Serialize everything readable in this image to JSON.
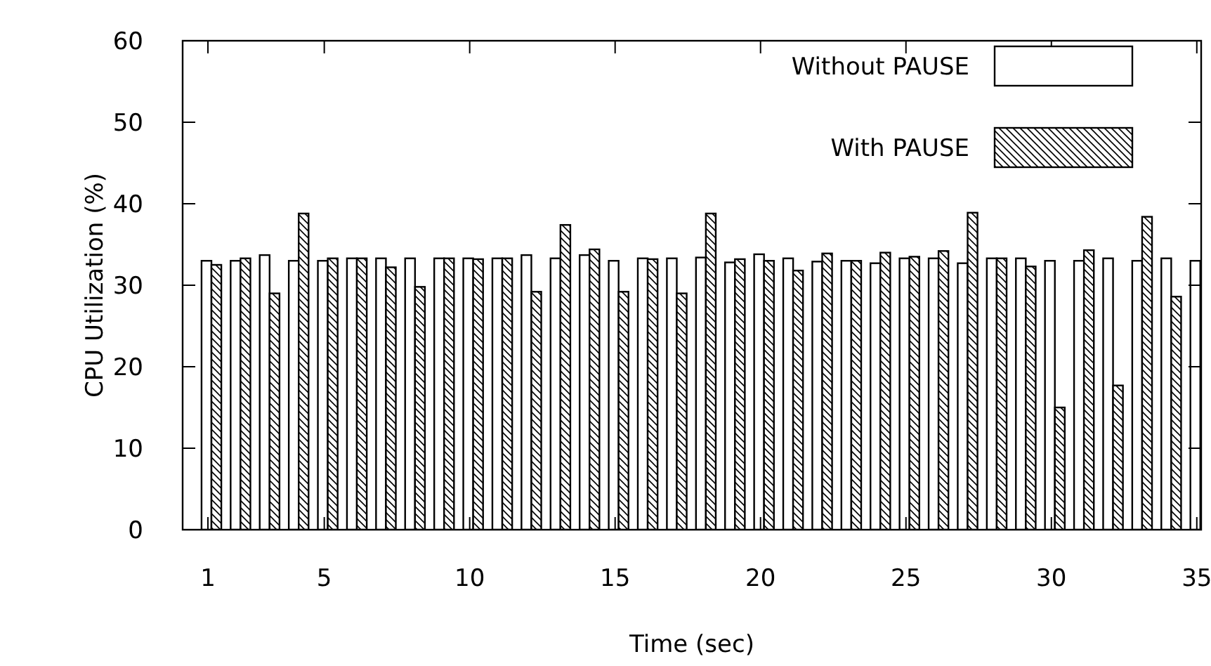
{
  "chart_data": {
    "type": "bar",
    "xlabel": "Time (sec)",
    "ylabel": "CPU Utilization (%)",
    "x": [
      1,
      2,
      3,
      4,
      5,
      6,
      7,
      8,
      9,
      10,
      11,
      12,
      13,
      14,
      15,
      16,
      17,
      18,
      19,
      20,
      21,
      22,
      23,
      24,
      25,
      26,
      27,
      28,
      29,
      30,
      31,
      32,
      33,
      34,
      35
    ],
    "xlim": [
      0.13,
      35.15
    ],
    "xticks": [
      1,
      5,
      10,
      15,
      20,
      25,
      30,
      35
    ],
    "ylim": [
      0,
      60
    ],
    "yticks": [
      0,
      10,
      20,
      30,
      40,
      50,
      60
    ],
    "series": [
      {
        "name": "Without PAUSE",
        "color": "#ffffff",
        "values": [
          33,
          33,
          33.7,
          33,
          33,
          33.3,
          33.3,
          33.3,
          33.3,
          33.3,
          33.3,
          33.7,
          33.3,
          33.7,
          33,
          33.3,
          33.3,
          33.4,
          32.8,
          33.8,
          33.3,
          32.9,
          33,
          32.7,
          33.3,
          33.3,
          32.7,
          33.3,
          33.3,
          33,
          33,
          33.3,
          33,
          33.3,
          33
        ]
      },
      {
        "name": "With PAUSE",
        "color": "#000000",
        "values": [
          32.5,
          33.3,
          29,
          38.8,
          33.3,
          33.3,
          32.2,
          29.8,
          33.3,
          33.2,
          33.3,
          29.2,
          37.4,
          34.4,
          29.2,
          33.2,
          29,
          38.8,
          33.2,
          33,
          31.8,
          33.9,
          33,
          34,
          33.5,
          34.2,
          38.9,
          33.3,
          32.3,
          15,
          34.3,
          17.7,
          38.4,
          28.6,
          null
        ]
      }
    ],
    "grid": false,
    "legend": "top right"
  }
}
